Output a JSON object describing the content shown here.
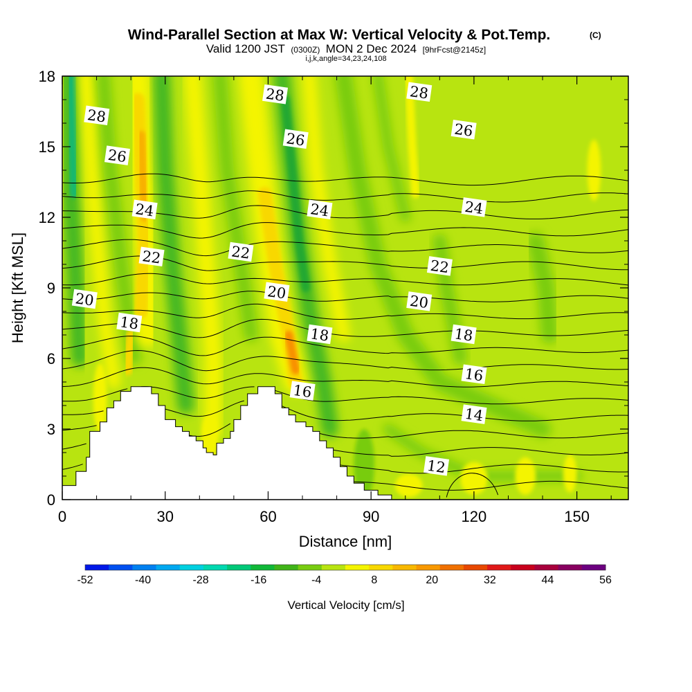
{
  "header": {
    "title": "Wind-Parallel Section at Max W: Vertical Velocity & Pot.Temp.",
    "copyright": "(C)",
    "valid_prefix": "Valid 1200 JST",
    "valid_utc": "(0300Z)",
    "valid_date": "MON 2 Dec 2024",
    "forecast": "[9hrFcst@2145z]",
    "grid_info": "i,j,k,angle=34,23,24,108"
  },
  "chart_data": {
    "type": "heatmap",
    "xlabel": "Distance [nm]",
    "ylabel": "Height [Kft MSL]",
    "xlim": [
      0,
      165
    ],
    "ylim": [
      0,
      18
    ],
    "x_ticks": [
      0,
      30,
      60,
      90,
      120,
      150
    ],
    "y_ticks": [
      0,
      3,
      6,
      9,
      12,
      15,
      18
    ],
    "colorbar": {
      "title": "Vertical Velocity [cm/s]",
      "tick_labels": [
        -52,
        -40,
        -28,
        -16,
        -4,
        8,
        20,
        32,
        44,
        56
      ],
      "colors": [
        "#0018e8",
        "#0050f0",
        "#0080f0",
        "#00a8f0",
        "#00d0e0",
        "#00d8b0",
        "#00c878",
        "#10b838",
        "#40b418",
        "#78cc10",
        "#b8e410",
        "#f4f400",
        "#f8d800",
        "#f8b800",
        "#f89800",
        "#f07000",
        "#e84800",
        "#e01818",
        "#c8001c",
        "#a8003c",
        "#880060",
        "#6c0080"
      ]
    },
    "theta_contour_labels": [
      {
        "text": "28",
        "x": 10,
        "y": 16.3
      },
      {
        "text": "26",
        "x": 16,
        "y": 14.6
      },
      {
        "text": "24",
        "x": 24,
        "y": 12.3
      },
      {
        "text": "22",
        "x": 26,
        "y": 10.3
      },
      {
        "text": "20",
        "x": 6.5,
        "y": 8.5
      },
      {
        "text": "18",
        "x": 19.5,
        "y": 7.5
      },
      {
        "text": "28",
        "x": 62,
        "y": 17.2
      },
      {
        "text": "26",
        "x": 68,
        "y": 15.3
      },
      {
        "text": "24",
        "x": 75,
        "y": 12.3
      },
      {
        "text": "22",
        "x": 52,
        "y": 10.5
      },
      {
        "text": "20",
        "x": 62.5,
        "y": 8.8
      },
      {
        "text": "18",
        "x": 75,
        "y": 7.0
      },
      {
        "text": "16",
        "x": 70,
        "y": 4.6
      },
      {
        "text": "28",
        "x": 104,
        "y": 17.3
      },
      {
        "text": "26",
        "x": 117,
        "y": 15.7
      },
      {
        "text": "24",
        "x": 120,
        "y": 12.4
      },
      {
        "text": "22",
        "x": 110,
        "y": 9.9
      },
      {
        "text": "20",
        "x": 104,
        "y": 8.4
      },
      {
        "text": "18",
        "x": 117,
        "y": 7.0
      },
      {
        "text": "16",
        "x": 120,
        "y": 5.3
      },
      {
        "text": "14",
        "x": 120,
        "y": 3.6
      },
      {
        "text": "12",
        "x": 109,
        "y": 1.4
      }
    ],
    "theta_contour_levels": [
      11,
      12,
      13,
      14,
      15,
      16,
      17,
      18,
      19,
      20,
      21,
      22,
      23,
      24,
      25,
      26,
      27,
      28,
      29
    ],
    "terrain_heights": [
      [
        0,
        0.6
      ],
      [
        4,
        1.2
      ],
      [
        7,
        1.8
      ],
      [
        8,
        2.9
      ],
      [
        11,
        3.3
      ],
      [
        13,
        3.9
      ],
      [
        15,
        4.2
      ],
      [
        17,
        4.6
      ],
      [
        20,
        4.8
      ],
      [
        24,
        4.8
      ],
      [
        26,
        4.5
      ],
      [
        28,
        4.0
      ],
      [
        30,
        3.4
      ],
      [
        33,
        3.1
      ],
      [
        35,
        2.9
      ],
      [
        37,
        2.7
      ],
      [
        39,
        2.5
      ],
      [
        41,
        2.2
      ],
      [
        42,
        2.0
      ],
      [
        44,
        1.9
      ],
      [
        45,
        2.4
      ],
      [
        47,
        2.6
      ],
      [
        49,
        2.9
      ],
      [
        50,
        3.4
      ],
      [
        52,
        4.0
      ],
      [
        54,
        4.5
      ],
      [
        57,
        4.8
      ],
      [
        60,
        4.8
      ],
      [
        62,
        4.5
      ],
      [
        64,
        3.9
      ],
      [
        66,
        3.6
      ],
      [
        68,
        3.3
      ],
      [
        71,
        3.1
      ],
      [
        73,
        2.9
      ],
      [
        75,
        2.5
      ],
      [
        77,
        2.2
      ],
      [
        79,
        1.8
      ],
      [
        81,
        1.4
      ],
      [
        83,
        1.0
      ],
      [
        85,
        0.7
      ],
      [
        88,
        0.4
      ],
      [
        92,
        0.2
      ],
      [
        96,
        0.0
      ],
      [
        165,
        0.0
      ]
    ]
  }
}
